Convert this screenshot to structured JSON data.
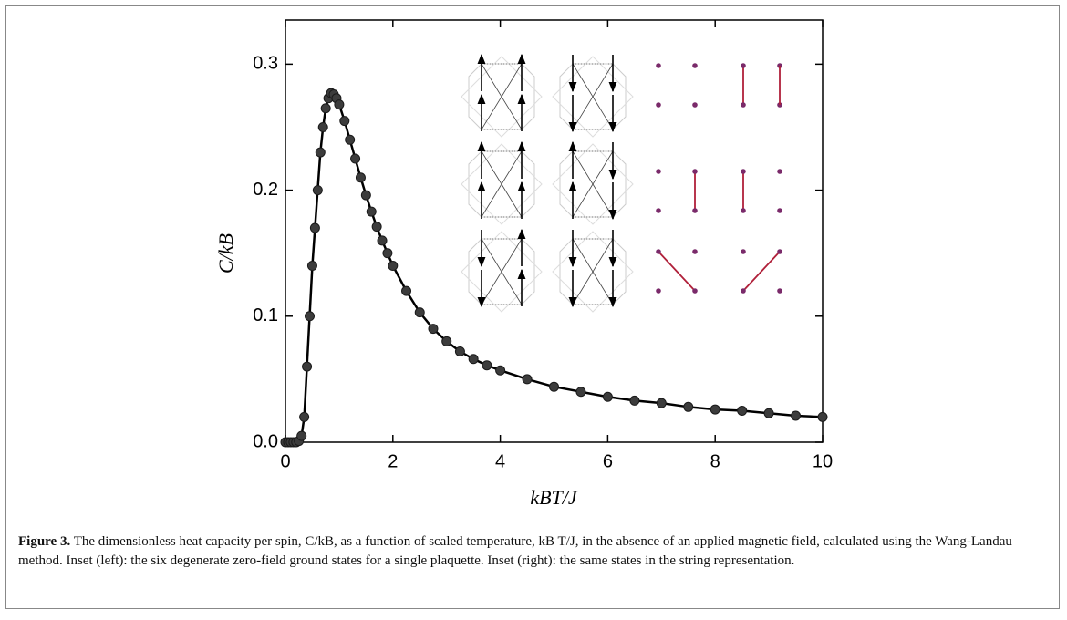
{
  "chart_data": {
    "type": "scatter",
    "line": true,
    "color": "#3c3c3c",
    "line_color": "#000000",
    "x_label": "kBT/J",
    "y_label": "C/kB",
    "x": [
      0,
      0.05,
      0.1,
      0.15,
      0.2,
      0.25,
      0.3,
      0.35,
      0.4,
      0.45,
      0.5,
      0.55,
      0.6,
      0.65,
      0.7,
      0.75,
      0.8,
      0.85,
      0.9,
      0.95,
      1.0,
      1.1,
      1.2,
      1.3,
      1.4,
      1.5,
      1.6,
      1.7,
      1.8,
      1.9,
      2.0,
      2.25,
      2.5,
      2.75,
      3,
      3.25,
      3.5,
      3.75,
      4,
      4.5,
      5,
      5.5,
      6,
      6.5,
      7,
      7.5,
      8,
      8.5,
      9,
      9.5,
      10
    ],
    "values": [
      0,
      0,
      0,
      0,
      0,
      0.001,
      0.005,
      0.02,
      0.06,
      0.1,
      0.14,
      0.17,
      0.2,
      0.23,
      0.25,
      0.265,
      0.273,
      0.277,
      0.276,
      0.273,
      0.268,
      0.255,
      0.24,
      0.225,
      0.21,
      0.196,
      0.183,
      0.171,
      0.16,
      0.15,
      0.14,
      0.12,
      0.103,
      0.09,
      0.08,
      0.072,
      0.066,
      0.061,
      0.057,
      0.05,
      0.044,
      0.04,
      0.036,
      0.033,
      0.031,
      0.028,
      0.026,
      0.025,
      0.023,
      0.021,
      0.02
    ],
    "xlim": [
      0,
      10
    ],
    "ylim": [
      0,
      0.335
    ],
    "xticks": [
      0,
      2,
      4,
      6,
      8,
      10
    ],
    "yticks": [
      {
        "value": 0,
        "label": "0.0"
      },
      0.1,
      0.2,
      0.3
    ]
  },
  "caption": {
    "label": "Figure 3.",
    "text": "The dimensionless heat capacity per spin, C/kB, as a function of scaled temperature, kB T/J, in the absence of an applied magnetic field, calculated using the Wang-Landau method. Inset (left): the six degenerate zero-field ground states for a single plaquette. Inset (right): the same states in the string representation."
  }
}
